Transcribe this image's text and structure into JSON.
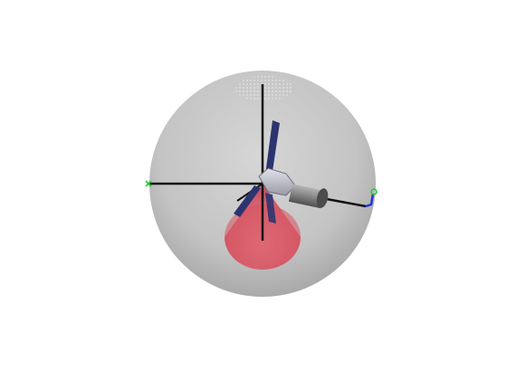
{
  "scene": {
    "background_color": "#ffffff",
    "sphere_color": "#b4b4b4",
    "axis_color": "#111111",
    "beam_color": "#e0283c",
    "panel_color": "#2c3470",
    "body_color": "#c8c8d4",
    "cylinder_color": "#7a7a7a",
    "marker_green": "#22cc33",
    "marker_blue": "#2233dd",
    "icons": [
      "satellite-icon",
      "sensor-cone-icon",
      "axis-marker-icon"
    ]
  }
}
